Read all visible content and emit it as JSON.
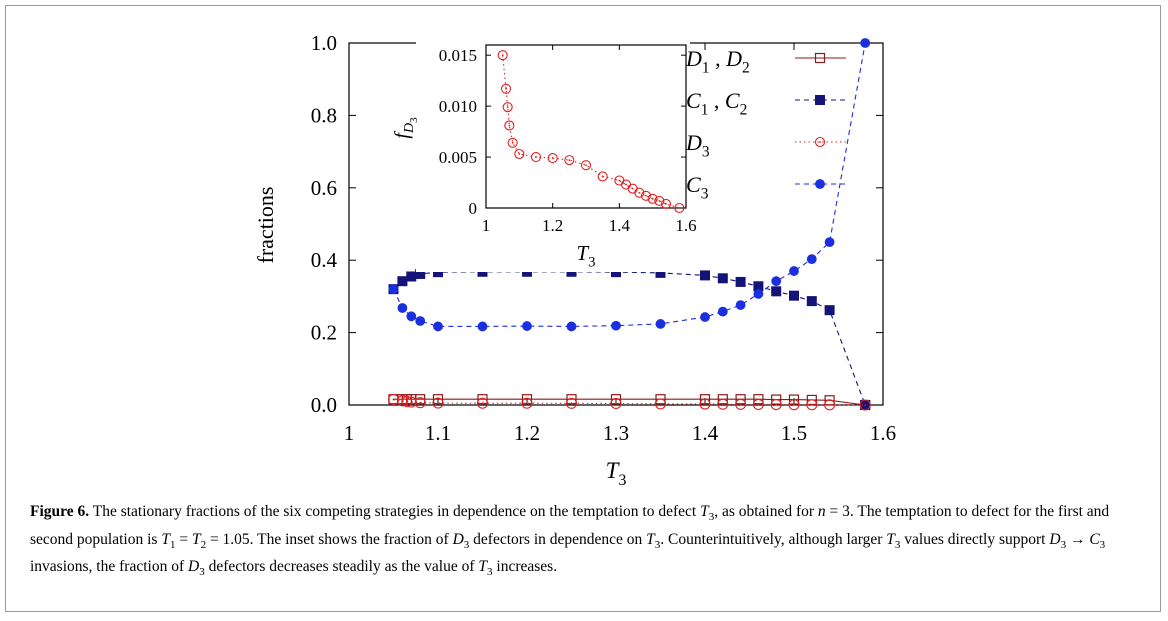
{
  "figure_label": "Figure 6.",
  "caption_parts": [
    "The stationary fractions of the six competing strategies in dependence on the temptation to defect ",
    "T",
    "3",
    ", as obtained for ",
    "n",
    " = 3. The temptation to defect for the first and second population is ",
    "T",
    "1",
    " = ",
    "T",
    "2",
    " = 1.05. The inset shows the fraction of ",
    "D",
    "3",
    " defectors in dependence on ",
    "T",
    "3",
    ". Counterintuitively, although larger ",
    "T",
    "3",
    " values directly support ",
    "D",
    "3",
    " → ",
    "C",
    "3",
    " invasions, the fraction of ",
    "D",
    "3",
    " defectors decreases steadily as the value of ",
    "T",
    "3",
    " increases."
  ],
  "chart_data": [
    {
      "type": "line",
      "xlabel": {
        "base": "T",
        "sub": "3"
      },
      "ylabel": "fractions",
      "xlim": [
        1,
        1.6
      ],
      "ylim": [
        0,
        1
      ],
      "xticks": [
        "1",
        "1.1",
        "1.2",
        "1.3",
        "1.4",
        "1.5",
        "1.6"
      ],
      "yticks": [
        "0.0",
        "0.2",
        "0.4",
        "0.6",
        "0.8",
        "1.0"
      ],
      "legend_position": "top-right",
      "series": [
        {
          "key": "d12",
          "name": {
            "a": "D",
            "asub": "1",
            "b": "D",
            "bsub": "2"
          },
          "color": "#8b1a1a",
          "marker": "open-square",
          "line": "solid",
          "x": [
            1.05,
            1.06,
            1.065,
            1.07,
            1.08,
            1.1,
            1.15,
            1.2,
            1.25,
            1.3,
            1.35,
            1.4,
            1.42,
            1.44,
            1.46,
            1.48,
            1.5,
            1.52,
            1.54,
            1.58
          ],
          "y": [
            0.016,
            0.016,
            0.016,
            0.016,
            0.016,
            0.016,
            0.016,
            0.016,
            0.016,
            0.016,
            0.016,
            0.016,
            0.016,
            0.016,
            0.016,
            0.015,
            0.015,
            0.014,
            0.013,
            0.0
          ]
        },
        {
          "key": "c12",
          "name": {
            "a": "C",
            "asub": "1",
            "b": "C",
            "bsub": "2"
          },
          "color": "#141478",
          "marker": "filled-square",
          "line": "dashed",
          "x": [
            1.05,
            1.06,
            1.07,
            1.08,
            1.1,
            1.15,
            1.2,
            1.25,
            1.3,
            1.35,
            1.4,
            1.42,
            1.44,
            1.46,
            1.48,
            1.5,
            1.52,
            1.54,
            1.58
          ],
          "y": [
            0.32,
            0.342,
            0.355,
            0.362,
            0.367,
            0.368,
            0.368,
            0.368,
            0.367,
            0.365,
            0.358,
            0.35,
            0.34,
            0.328,
            0.314,
            0.302,
            0.287,
            0.262,
            0.0
          ]
        },
        {
          "key": "d3",
          "name": {
            "a": "D",
            "asub": "3"
          },
          "color": "#e02020",
          "marker": "open-circle-dot",
          "line": "dotted",
          "x": [
            1.05,
            1.06,
            1.065,
            1.07,
            1.08,
            1.1,
            1.15,
            1.2,
            1.25,
            1.3,
            1.35,
            1.4,
            1.42,
            1.44,
            1.46,
            1.48,
            1.5,
            1.52,
            1.54,
            1.58
          ],
          "y": [
            0.015,
            0.0117,
            0.0099,
            0.0081,
            0.0064,
            0.0053,
            0.005,
            0.0049,
            0.0047,
            0.0042,
            0.0031,
            0.0027,
            0.0023,
            0.0019,
            0.0015,
            0.0012,
            0.0009,
            0.0007,
            0.0004,
            0.0
          ]
        },
        {
          "key": "c3",
          "name": {
            "a": "C",
            "asub": "3"
          },
          "color": "#1a2fe0",
          "marker": "filled-circle",
          "line": "dashed",
          "x": [
            1.05,
            1.06,
            1.07,
            1.08,
            1.1,
            1.15,
            1.2,
            1.25,
            1.3,
            1.35,
            1.4,
            1.42,
            1.44,
            1.46,
            1.48,
            1.5,
            1.52,
            1.54,
            1.58
          ],
          "y": [
            0.32,
            0.268,
            0.245,
            0.232,
            0.217,
            0.217,
            0.218,
            0.217,
            0.219,
            0.224,
            0.243,
            0.258,
            0.276,
            0.307,
            0.342,
            0.37,
            0.403,
            0.45,
            1.0
          ]
        }
      ]
    },
    {
      "type": "line",
      "role": "inset",
      "xlabel": {
        "base": "T",
        "sub": "3"
      },
      "ylabel": {
        "base": "f",
        "sub": "D",
        "subsub": "3"
      },
      "xlim": [
        1,
        1.6
      ],
      "ylim": [
        0,
        0.016
      ],
      "xticks": [
        "1",
        "1.2",
        "1.4",
        "1.6"
      ],
      "yticks": [
        "0",
        "0.005",
        "0.010",
        "0.015"
      ],
      "series_ref": "d3"
    }
  ]
}
